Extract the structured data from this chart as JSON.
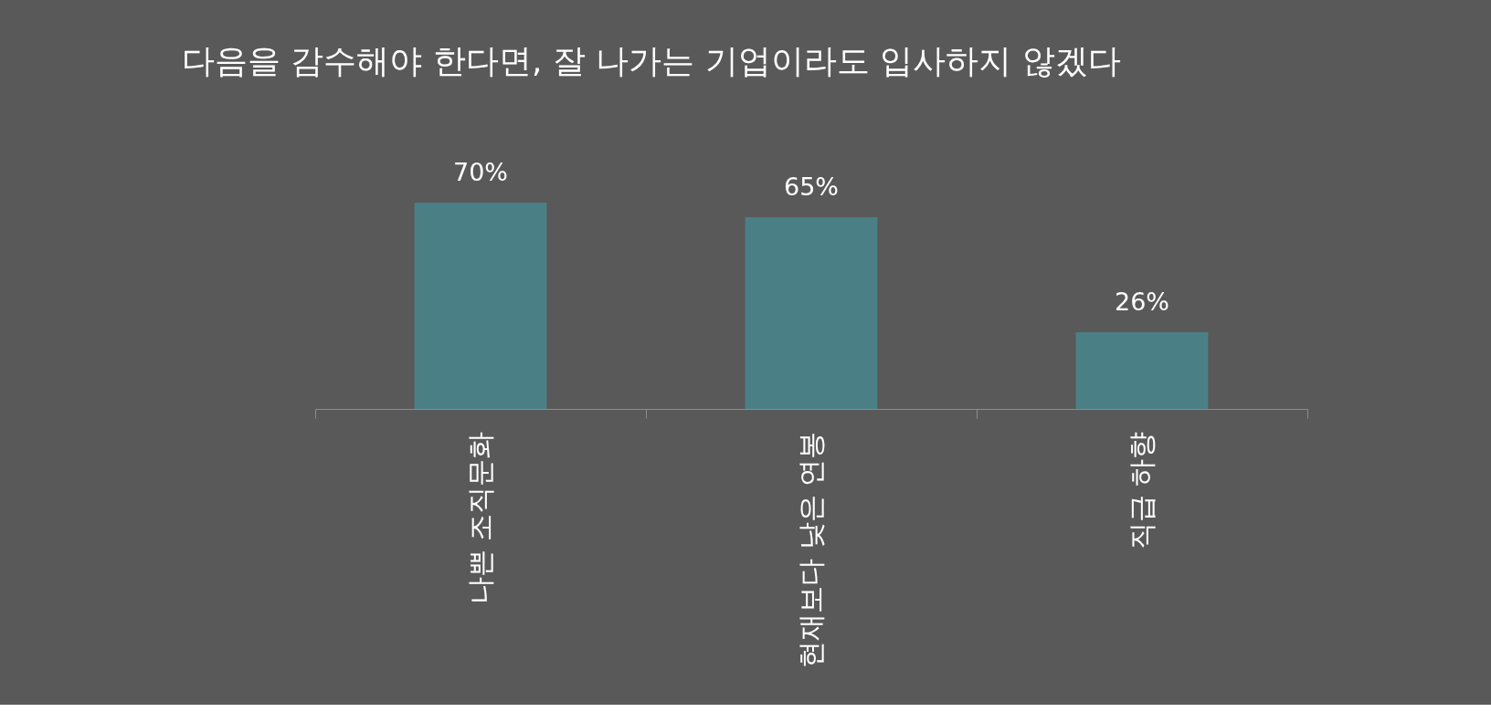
{
  "chart_data": {
    "type": "bar",
    "title": "다음을 감수해야 한다면, 잘 나가는 기업이라도 입사하지 않겠다",
    "categories": [
      "나쁜 조직문화",
      "현재보다 낮은 연봉",
      "직급 하향"
    ],
    "values": [
      70,
      65,
      26
    ],
    "value_labels": [
      "70%",
      "65%",
      "26%"
    ],
    "color": "#4a8085",
    "tick_labels": "x",
    "grid": false
  }
}
